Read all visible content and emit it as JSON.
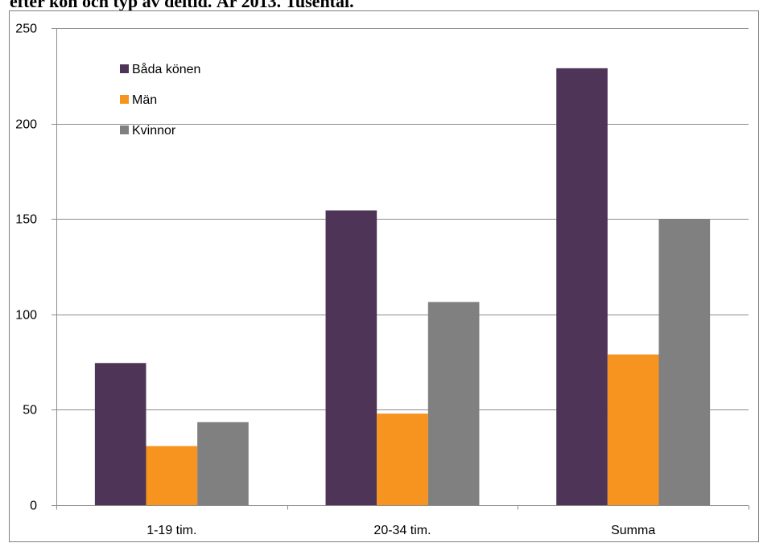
{
  "chart_data": {
    "type": "bar",
    "title": "efter kön och typ av deltid. År 2013. Tusental.",
    "categories": [
      "1-19 tim.",
      "20-34 tim.",
      "Summa"
    ],
    "series": [
      {
        "name": "Båda könen",
        "color": "#4E3558",
        "values": [
          74.5,
          154.5,
          229
        ]
      },
      {
        "name": "Män",
        "color": "#F79420",
        "values": [
          31,
          48,
          79
        ]
      },
      {
        "name": "Kvinnor",
        "color": "#808080",
        "values": [
          43.5,
          106.5,
          150
        ]
      }
    ],
    "yticks": [
      0,
      50,
      100,
      150,
      200,
      250
    ],
    "ylim": [
      0,
      250
    ],
    "xlabel": "",
    "ylabel": "",
    "grid": true,
    "legend": "top-left"
  }
}
